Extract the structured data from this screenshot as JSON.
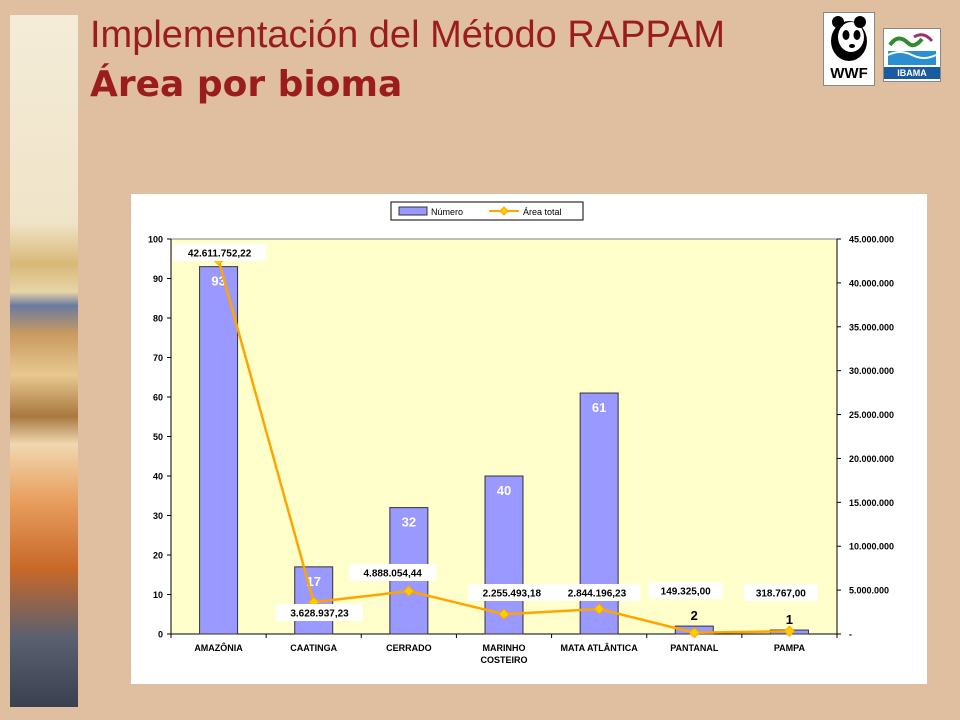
{
  "slide": {
    "title": "Implementación del Método RAPPAM",
    "subtitle": "Área por bioma"
  },
  "logos": {
    "wwf": "WWF",
    "ibama": "IBAMA"
  },
  "colors": {
    "background": "#dfbf9f",
    "title": "#9b1c1c",
    "plot_bg": "#ffffcc",
    "bar_fill": "#9999ff",
    "line": "#ffa500",
    "marker": "#ffcc00"
  },
  "chart_data": {
    "type": "bar",
    "title": "",
    "categories": [
      "AMAZÔNIA",
      "CAATINGA",
      "CERRADO",
      "MARINHO COSTEIRO",
      "MATA ATLÂNTICA",
      "PANTANAL",
      "PAMPA"
    ],
    "category_lines": [
      [
        "AMAZÔNIA"
      ],
      [
        "CAATINGA"
      ],
      [
        "CERRADO"
      ],
      [
        "MARINHO",
        "COSTEIRO"
      ],
      [
        "MATA ATLÂNTICA"
      ],
      [
        "PANTANAL"
      ],
      [
        "PAMPA"
      ]
    ],
    "series": [
      {
        "name": "Número",
        "type": "bar",
        "axis": "left",
        "values": [
          93,
          17,
          32,
          40,
          61,
          2,
          1
        ],
        "labels": [
          "93",
          "17",
          "32",
          "40",
          "61",
          "2",
          "1"
        ]
      },
      {
        "name": "Área total",
        "type": "line",
        "axis": "right",
        "values": [
          42611752.22,
          3628937.23,
          4888054.44,
          2255493.18,
          2844196.23,
          149325.0,
          318767.0
        ],
        "labels": [
          "42.611.752,22",
          "3.628.937,23",
          "4.888.054,44",
          "2.255.493,18",
          "2.844.196,23",
          "149.325,00",
          "318.767,00"
        ]
      }
    ],
    "y_left": {
      "min": 0,
      "max": 100,
      "step": 10,
      "ticks": [
        "0",
        "10",
        "20",
        "30",
        "40",
        "50",
        "60",
        "70",
        "80",
        "90",
        "100"
      ]
    },
    "y_right": {
      "min": 0,
      "max": 45000000,
      "step": 5000000,
      "ticks": [
        "-",
        "5.000.000",
        "10.000.000",
        "15.000.000",
        "20.000.000",
        "25.000.000",
        "30.000.000",
        "35.000.000",
        "40.000.000",
        "45.000.000"
      ]
    },
    "legend": {
      "position": "top",
      "entries": [
        "Número",
        "Área total"
      ]
    },
    "grid": false
  }
}
